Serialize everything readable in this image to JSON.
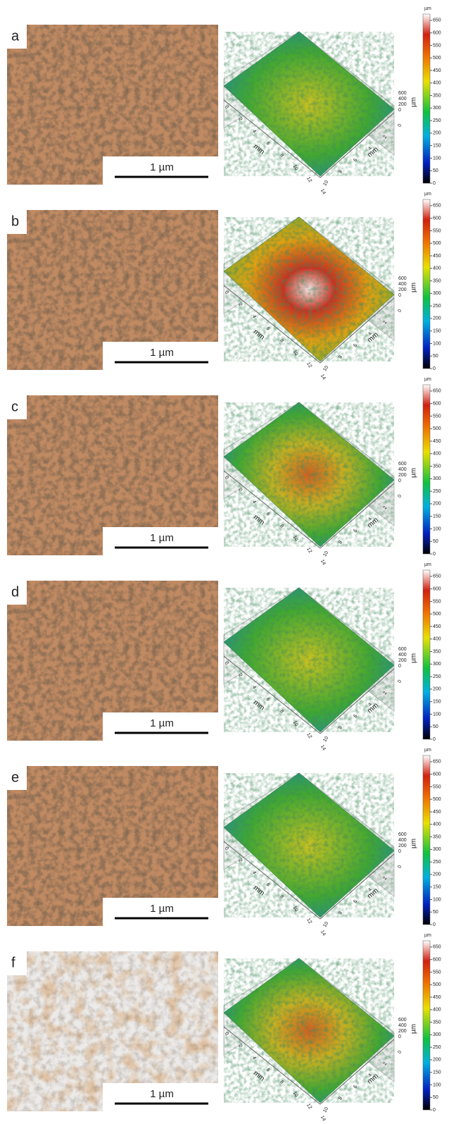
{
  "panels": [
    {
      "label": "a",
      "scale_bar": "1 µm",
      "surface": {
        "x_axis": "mm",
        "y_axis": "mm",
        "z_axis": "µm",
        "x_ticks": [
          0,
          2,
          4,
          6,
          8,
          10,
          12,
          14
        ],
        "y_ticks": [
          0,
          2,
          4,
          6,
          8,
          10
        ],
        "z_ticks": [
          600,
          400,
          200,
          0
        ]
      },
      "colorbar": {
        "unit": "µm",
        "ticks": [
          0,
          50,
          100,
          150,
          200,
          250,
          300,
          350,
          400,
          450,
          500,
          550,
          600,
          650
        ]
      }
    },
    {
      "label": "b",
      "scale_bar": "1 µm",
      "surface": {
        "x_axis": "mm",
        "y_axis": "mm",
        "z_axis": "µm",
        "x_ticks": [
          0,
          2,
          4,
          6,
          8,
          10,
          12,
          14
        ],
        "y_ticks": [
          0,
          2,
          4,
          6,
          8,
          10
        ],
        "z_ticks": [
          600,
          400,
          200,
          0
        ]
      },
      "colorbar": {
        "unit": "µm",
        "ticks": [
          0,
          50,
          100,
          150,
          200,
          250,
          300,
          350,
          400,
          450,
          500,
          550,
          600,
          650
        ]
      }
    },
    {
      "label": "c",
      "scale_bar": "1 µm",
      "surface": {
        "x_axis": "mm",
        "y_axis": "mm",
        "z_axis": "µm",
        "x_ticks": [
          0,
          2,
          4,
          6,
          8,
          10,
          12,
          14
        ],
        "y_ticks": [
          0,
          2,
          4,
          6,
          8,
          10
        ],
        "z_ticks": [
          600,
          400,
          200,
          0
        ]
      },
      "colorbar": {
        "unit": "µm",
        "ticks": [
          0,
          50,
          100,
          150,
          200,
          250,
          300,
          350,
          400,
          450,
          500,
          550,
          600,
          650
        ]
      }
    },
    {
      "label": "d",
      "scale_bar": "1 µm",
      "surface": {
        "x_axis": "mm",
        "y_axis": "mm",
        "z_axis": "µm",
        "x_ticks": [
          0,
          2,
          4,
          6,
          8,
          10,
          12,
          14
        ],
        "y_ticks": [
          0,
          2,
          4,
          6,
          8,
          10
        ],
        "z_ticks": [
          600,
          400,
          200,
          0
        ]
      },
      "colorbar": {
        "unit": "µm",
        "ticks": [
          0,
          50,
          100,
          150,
          200,
          250,
          300,
          350,
          400,
          450,
          500,
          550,
          600,
          650
        ]
      }
    },
    {
      "label": "e",
      "scale_bar": "1 µm",
      "surface": {
        "x_axis": "mm",
        "y_axis": "mm",
        "z_axis": "µm",
        "x_ticks": [
          0,
          2,
          4,
          6,
          8,
          10,
          12,
          14
        ],
        "y_ticks": [
          0,
          2,
          4,
          6,
          8,
          10
        ],
        "z_ticks": [
          600,
          400,
          200,
          0
        ]
      },
      "colorbar": {
        "unit": "µm",
        "ticks": [
          0,
          50,
          100,
          150,
          200,
          250,
          300,
          350,
          400,
          450,
          500,
          550,
          600,
          650
        ]
      }
    },
    {
      "label": "f",
      "scale_bar": "1 µm",
      "surface": {
        "x_axis": "mm",
        "y_axis": "mm",
        "z_axis": "µm",
        "x_ticks": [
          0,
          2,
          4,
          6,
          8,
          10,
          12,
          14
        ],
        "y_ticks": [
          0,
          2,
          4,
          6,
          8,
          10
        ],
        "z_ticks": [
          600,
          400,
          200,
          0
        ]
      },
      "colorbar": {
        "unit": "µm",
        "ticks": [
          0,
          50,
          100,
          150,
          200,
          250,
          300,
          350,
          400,
          450,
          500,
          550,
          600,
          650
        ]
      }
    }
  ]
}
